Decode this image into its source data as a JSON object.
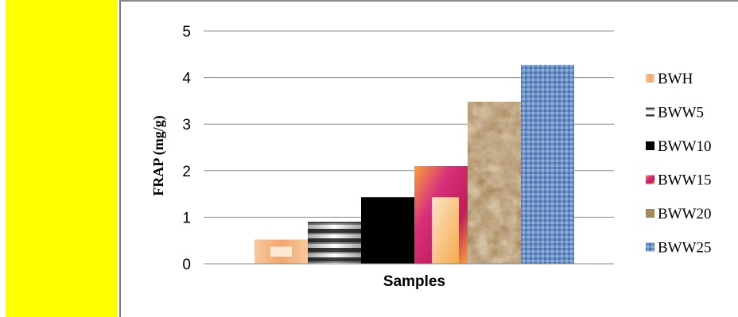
{
  "chart_data": {
    "type": "bar",
    "title": "",
    "xlabel": "Samples",
    "ylabel": "FRAP (mg/g)",
    "ylim": [
      0,
      5
    ],
    "yticks": [
      0,
      1,
      2,
      3,
      4,
      5
    ],
    "grid": true,
    "legend_position": "right",
    "categories": [
      "Samples"
    ],
    "series": [
      {
        "name": "BWH",
        "values": [
          0.52
        ],
        "color": "#f4b183"
      },
      {
        "name": "BWW5",
        "values": [
          0.9
        ],
        "color": "#bfbfbf"
      },
      {
        "name": "BWW10",
        "values": [
          1.43
        ],
        "color": "#000000"
      },
      {
        "name": "BWW15",
        "values": [
          2.1
        ],
        "color": "#e0306a"
      },
      {
        "name": "BWW20",
        "values": [
          3.48
        ],
        "color": "#a8895e"
      },
      {
        "name": "BWW25",
        "values": [
          4.27
        ],
        "color": "#5b7fb5"
      }
    ]
  }
}
